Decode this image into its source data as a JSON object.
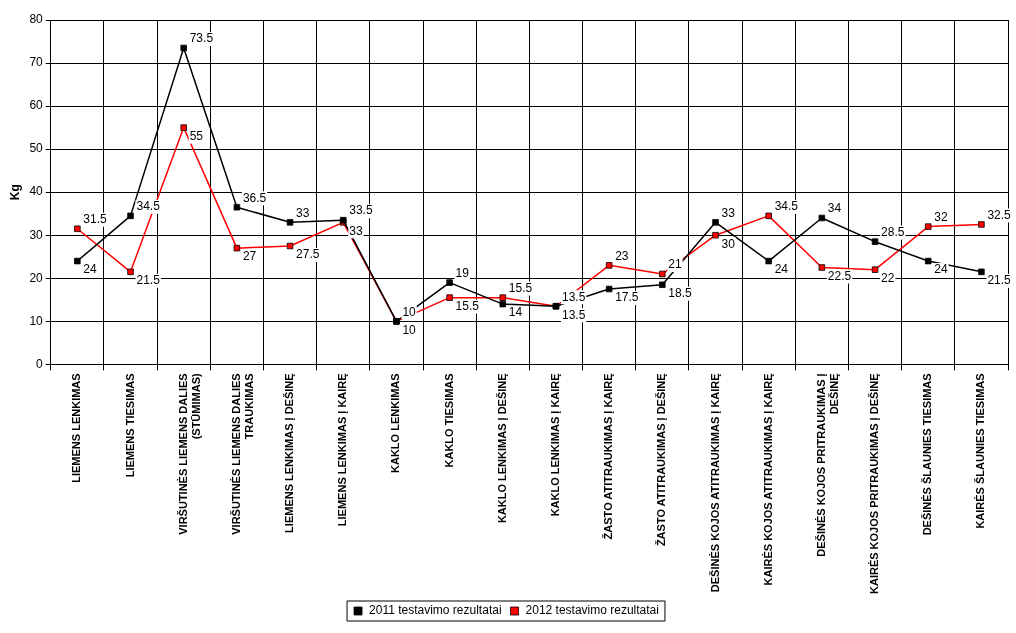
{
  "chart_data": {
    "type": "line",
    "ylabel": "Kg",
    "categories": [
      "LIEMENS LENKIMAS",
      "LIEMENS TIESIMAS",
      "VIRŠUTINĖS LIEMENS DALIES (STŪMIMAS)",
      "VIRŠUTINĖS LIEMENS DALIES TRAUKIMAS",
      "LIEMENS LENKIMAS Į DEŠINĘ",
      "LIEMENS LENKIMAS Į KAIRĘ",
      "KAKLO LENKIMAS",
      "KAKLO TIESIMAS",
      "KAKLO LENKIMAS Į DEŠINĘ",
      "KAKLO LENKIMAS Į KAIRĘ",
      "ŽASTO ATITRAUKIMAS Į KAIRĘ",
      "ŽASTO ATITRAUKIMAS Į DEŠINĘ",
      "DEŠINĖS KOJOS ATITRAUKIMAS Į KAIRĘ",
      "KAIRĖS KOJOS ATITRAUKIMAS Į KAIRĘ",
      "DEŠINĖS KOJOS PRITRAUKIMAS Į DEŠINĘ",
      "KAIRĖS KOJOS PRITRAUKIMAS Į DEŠINĘ",
      "DEŠINĖS ŠLAUNIES TIESIMAS",
      "KAIRĖS ŠLAUNIES TIESIMAS"
    ],
    "series": [
      {
        "name": "2011 testavimo rezultatai",
        "color": "#000000",
        "values": [
          24,
          34.5,
          73.5,
          36.5,
          33,
          33.5,
          10,
          19,
          14,
          13.5,
          17.5,
          18.5,
          33,
          24,
          34,
          28.5,
          24,
          21.5
        ]
      },
      {
        "name": "2012 testavimo rezultatai",
        "color": "#ff0000",
        "values": [
          31.5,
          21.5,
          55,
          27,
          27.5,
          33,
          10,
          15.5,
          15.5,
          13.5,
          23,
          21,
          30,
          34.5,
          22.5,
          22,
          32,
          32.5
        ]
      }
    ],
    "ylim": [
      0,
      80
    ],
    "yticks": [
      0,
      10,
      20,
      30,
      40,
      50,
      60,
      70,
      80
    ],
    "grid": true,
    "legend": "bottom",
    "marker": "square",
    "line_style": "solid",
    "data_labels": true
  }
}
